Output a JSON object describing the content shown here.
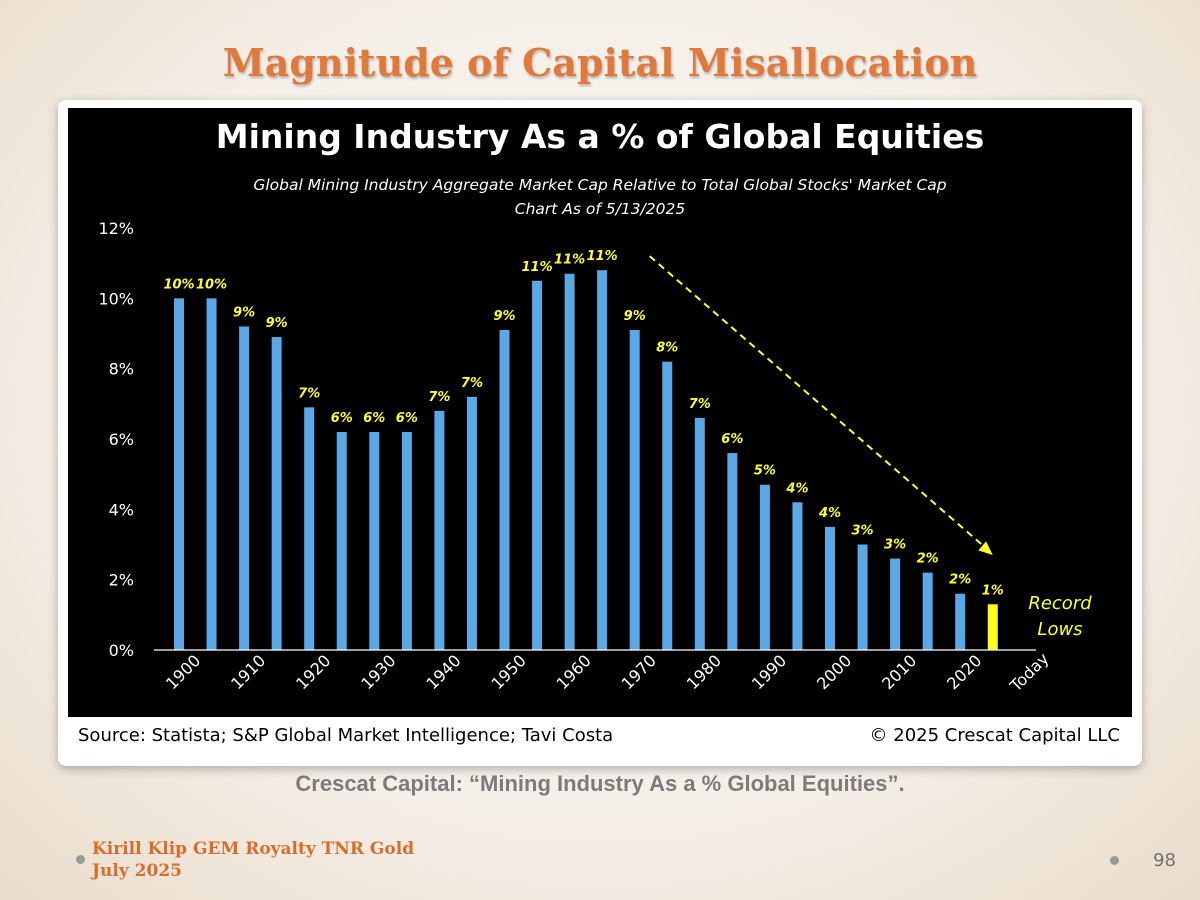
{
  "slide": {
    "title": "Magnitude of Capital Misallocation",
    "caption": "Crescat Capital: “Mining Industry As a % Global Equities”.",
    "footer_line1": "Kirill Klip GEM Royalty TNR Gold",
    "footer_line2": "July 2025",
    "page_number": "98"
  },
  "colors": {
    "bar": "#5aa9e6",
    "highlight_bar": "#ffff1a",
    "label": "#ffff33",
    "text": "#ffffff",
    "background": "#000000"
  },
  "chart_data": {
    "type": "bar",
    "title": "Mining Industry As a % of Global Equities",
    "subtitle_line1": "Global Mining Industry Aggregate Market Cap Relative to Total Global Stocks' Market Cap",
    "subtitle_line2": "Chart As of 5/13/2025",
    "ylim": [
      0,
      12
    ],
    "yticks": [
      "0%",
      "2%",
      "4%",
      "6%",
      "8%",
      "10%",
      "12%"
    ],
    "ytick_values": [
      0,
      2,
      4,
      6,
      8,
      10,
      12
    ],
    "x_tick_labels": [
      "1900",
      "1910",
      "1920",
      "1930",
      "1940",
      "1950",
      "1960",
      "1970",
      "1980",
      "1990",
      "2000",
      "2010",
      "2020",
      "Today"
    ],
    "values": [
      10.0,
      10.0,
      9.2,
      8.9,
      6.9,
      6.2,
      6.2,
      6.2,
      6.8,
      7.2,
      9.1,
      10.5,
      10.7,
      10.8,
      9.1,
      8.2,
      6.6,
      5.6,
      4.7,
      4.2,
      3.5,
      3.0,
      2.6,
      2.2,
      1.6,
      1.3
    ],
    "data_labels": [
      "10%",
      "10%",
      "9%",
      "9%",
      "7%",
      "6%",
      "6%",
      "6%",
      "7%",
      "7%",
      "9%",
      "11%",
      "11%",
      "11%",
      "9%",
      "8%",
      "7%",
      "6%",
      "5%",
      "4%",
      "4%",
      "3%",
      "3%",
      "2%",
      "2%",
      "1%"
    ],
    "highlight_last": true,
    "annotation_line1": "Record",
    "annotation_line2": "Lows",
    "trend_arrow": {
      "from_bar": 14,
      "to_bar": 25,
      "from_value": 11.2,
      "to_value": 2.7
    },
    "source": "Source: Statista; S&P Global Market Intelligence; Tavi Costa",
    "copyright": "© 2025 Crescat Capital LLC"
  }
}
